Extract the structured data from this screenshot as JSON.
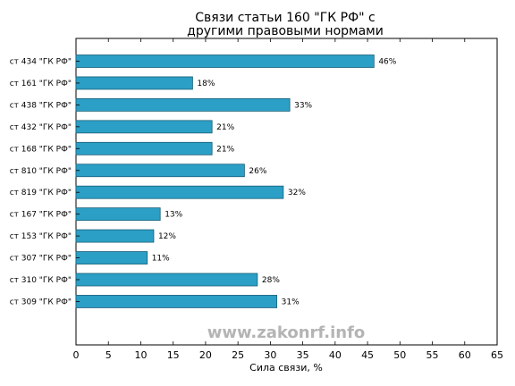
{
  "chart_data": {
    "type": "bar",
    "orientation": "horizontal",
    "title_lines": [
      "Связи статьи 160 \"ГК РФ\" с",
      "другими правовыми нормами"
    ],
    "xlabel": "Сила связи, %",
    "ylabel": "",
    "xlim": [
      0,
      65
    ],
    "xticks": [
      0,
      5,
      10,
      15,
      20,
      25,
      30,
      35,
      40,
      45,
      50,
      55,
      60,
      65
    ],
    "categories": [
      "ст 434 \"ГК РФ\"",
      "ст 161 \"ГК РФ\"",
      "ст 438 \"ГК РФ\"",
      "ст 432 \"ГК РФ\"",
      "ст 168 \"ГК РФ\"",
      "ст 810 \"ГК РФ\"",
      "ст 819 \"ГК РФ\"",
      "ст 167 \"ГК РФ\"",
      "ст 153 \"ГК РФ\"",
      "ст 307 \"ГК РФ\"",
      "ст 310 \"ГК РФ\"",
      "ст 309 \"ГК РФ\""
    ],
    "values": [
      46,
      18,
      33,
      21,
      21,
      26,
      32,
      13,
      12,
      11,
      28,
      31
    ],
    "value_labels": [
      "46%",
      "18%",
      "33%",
      "21%",
      "21%",
      "26%",
      "32%",
      "13%",
      "12%",
      "11%",
      "28%",
      "31%"
    ],
    "bar_color": "#2b9fc5",
    "bar_edge_color": "#1a5f78",
    "grid": false,
    "legend": "none"
  },
  "watermark": "www.zakonrf.info"
}
